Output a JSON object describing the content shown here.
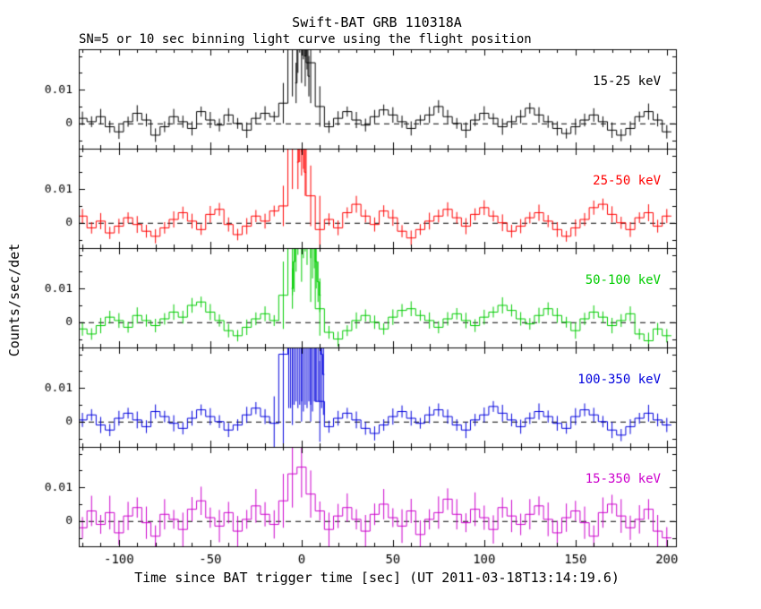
{
  "title": "Swift-BAT GRB 110318A",
  "subtitle": "SN=5 or 10 sec binning light curve using the flight position",
  "xlabel": "Time since BAT trigger time [sec] (UT 2011-03-18T13:14:19.6)",
  "ylabel": "Counts/sec/det",
  "chart_data": {
    "type": "line",
    "style": "step-histogram-with-errorbars",
    "xlim": [
      -122,
      205
    ],
    "ylim": [
      -0.0075,
      0.022
    ],
    "x_major_ticks": [
      -100,
      -50,
      0,
      50,
      100,
      150,
      200
    ],
    "x_minor_step": 10,
    "y_ticks": [
      0,
      0.01
    ],
    "y_minor_ticks": [
      -0.005,
      0,
      0.005,
      0.01,
      0.015,
      0.02
    ],
    "y_scale": 0.001,
    "x_start": -120,
    "x_step": 5,
    "zero_line": "dashed",
    "legend_position": "inside-right",
    "series": [
      {
        "label": "15-25 keV",
        "color": "#000000",
        "y": [
          1.5,
          0.5,
          2.0,
          -1.0,
          -2.5,
          0.5,
          3.0,
          1.0,
          -3.5,
          -1.0,
          2.0,
          0.5,
          -1.5,
          3.5,
          1.0,
          -0.5,
          2.5,
          0.0,
          -2.0,
          1.5,
          3.0,
          2.0,
          6.0,
          22.0,
          30.0,
          18.0,
          5.0,
          -1.0,
          1.5,
          3.5,
          1.0,
          -0.5,
          2.0,
          4.0,
          2.5,
          0.5,
          -1.5,
          1.0,
          2.5,
          5.0,
          2.0,
          0.0,
          -2.0,
          1.0,
          3.0,
          1.5,
          -1.0,
          0.5,
          2.0,
          4.5,
          2.5,
          0.5,
          -1.5,
          -3.0,
          -1.0,
          1.0,
          2.5,
          0.5,
          -2.0,
          -3.5,
          -1.5,
          2.0,
          3.5,
          1.0,
          -2.5
        ],
        "err_pattern": [
          2.0,
          1.6,
          2.3,
          1.8,
          2.1,
          1.5,
          2.4,
          1.9
        ],
        "err_overrides": {
          "22": 6,
          "23": 14,
          "24": 18,
          "25": 12,
          "26": 6
        },
        "fine_step": 1,
        "fine_x": [
          -3,
          -2,
          -1,
          0,
          1,
          2,
          3,
          4
        ],
        "fine_y": [
          12,
          25,
          33,
          35,
          30,
          20,
          26,
          14
        ],
        "fine_err": [
          6,
          10,
          12,
          12,
          11,
          9,
          10,
          6
        ]
      },
      {
        "label": "25-50 keV",
        "color": "#ff0000",
        "y": [
          2.0,
          -1.5,
          0.5,
          -3.0,
          -1.0,
          1.5,
          -0.5,
          -2.5,
          -4.0,
          -1.5,
          1.0,
          3.0,
          0.5,
          -2.0,
          2.5,
          4.0,
          -0.5,
          -3.5,
          -1.0,
          2.0,
          0.5,
          3.5,
          5.0,
          24.0,
          34.0,
          8.0,
          -2.0,
          1.0,
          -1.5,
          3.0,
          5.5,
          2.0,
          -0.5,
          3.5,
          1.5,
          -2.5,
          -4.5,
          -2.0,
          0.5,
          2.0,
          4.0,
          1.5,
          -1.0,
          2.5,
          4.5,
          2.0,
          0.0,
          -2.5,
          -1.0,
          1.5,
          3.0,
          0.5,
          -2.0,
          -4.0,
          -1.5,
          1.0,
          4.5,
          5.5,
          2.5,
          0.0,
          -2.0,
          1.5,
          3.0,
          -1.0,
          2.0
        ],
        "err_pattern": [
          2.1,
          1.7,
          2.4,
          1.8,
          2.2,
          1.6,
          2.5,
          1.9
        ],
        "err_overrides": {
          "22": 6,
          "23": 14,
          "24": 20,
          "25": 9,
          "26": 10
        },
        "fine_step": 1,
        "fine_x": [
          -2,
          -1,
          0,
          1,
          2
        ],
        "fine_y": [
          18,
          30,
          34,
          26,
          15
        ],
        "fine_err": [
          8,
          12,
          13,
          10,
          7
        ]
      },
      {
        "label": "50-100 keV",
        "color": "#00cc00",
        "y": [
          -2.0,
          -3.5,
          -1.0,
          1.5,
          0.5,
          -1.5,
          2.0,
          0.5,
          -1.0,
          1.0,
          3.0,
          1.5,
          5.0,
          6.0,
          3.0,
          0.5,
          -2.5,
          -4.0,
          -1.5,
          1.0,
          2.5,
          0.5,
          8.0,
          28.0,
          34.0,
          26.0,
          4.0,
          -3.0,
          -5.0,
          -2.5,
          0.5,
          2.0,
          0.0,
          -2.0,
          1.5,
          3.5,
          4.0,
          2.0,
          0.5,
          -1.5,
          1.0,
          2.5,
          0.5,
          -1.0,
          1.5,
          3.0,
          5.0,
          3.5,
          1.0,
          -0.5,
          2.0,
          4.0,
          2.0,
          0.0,
          -2.5,
          1.0,
          3.0,
          1.5,
          -1.0,
          0.5,
          2.5,
          -3.5,
          -5.5,
          -2.0,
          -4.0
        ],
        "err_pattern": [
          2.0,
          1.7,
          2.3,
          1.9,
          2.2,
          1.6,
          2.4,
          1.8
        ],
        "err_overrides": {
          "22": 10,
          "23": 20,
          "24": 22,
          "25": 20,
          "26": 8
        },
        "fine_step": 1,
        "fine_x": [
          -5,
          -4,
          -3,
          -2,
          -1,
          0,
          1,
          2,
          3,
          4,
          5,
          6,
          7,
          8,
          9,
          10
        ],
        "fine_y": [
          10,
          18,
          26,
          32,
          35,
          34,
          30,
          33,
          28,
          35,
          30,
          22,
          26,
          18,
          12,
          8
        ],
        "fine_err": [
          6,
          9,
          11,
          12,
          12,
          12,
          11,
          12,
          11,
          12,
          11,
          9,
          10,
          8,
          6,
          5
        ]
      },
      {
        "label": "100-350 keV",
        "color": "#0000dd",
        "y": [
          0.5,
          2.0,
          -1.0,
          -2.5,
          1.0,
          2.5,
          0.5,
          -1.5,
          3.0,
          1.5,
          -0.5,
          -2.0,
          1.0,
          3.5,
          1.5,
          0.0,
          -2.5,
          -1.0,
          2.0,
          4.0,
          1.5,
          -0.5,
          20.0,
          34.0,
          36.0,
          34.0,
          6.0,
          -1.5,
          1.0,
          2.5,
          0.5,
          -2.0,
          -3.5,
          -1.0,
          1.5,
          3.0,
          1.0,
          -0.5,
          2.0,
          3.5,
          1.5,
          -1.0,
          -2.5,
          0.5,
          2.0,
          4.5,
          2.5,
          0.5,
          -1.5,
          1.0,
          3.0,
          1.5,
          -0.5,
          -2.0,
          1.5,
          3.5,
          2.0,
          0.0,
          -2.5,
          -4.0,
          -1.5,
          1.0,
          2.5,
          0.5,
          -1.0
        ],
        "err_pattern": [
          2.1,
          1.7,
          2.4,
          1.8,
          2.2,
          1.6,
          2.5,
          1.9
        ],
        "err_overrides": {
          "21": 8,
          "22": 30,
          "23": 35,
          "24": 36,
          "25": 34,
          "26": 12
        },
        "fine_step": 1,
        "fine_x": [
          -7,
          -6,
          -5,
          -4,
          -3,
          -2,
          -1,
          0,
          1,
          2,
          3,
          4,
          5,
          6,
          7,
          8,
          9,
          10,
          11,
          12
        ],
        "fine_y": [
          22,
          28,
          33,
          35,
          36,
          34,
          35,
          36,
          33,
          35,
          34,
          36,
          35,
          33,
          34,
          32,
          30,
          26,
          20,
          14
        ],
        "fine_err": [
          18,
          24,
          28,
          30,
          30,
          30,
          30,
          30,
          30,
          30,
          30,
          30,
          30,
          30,
          28,
          26,
          24,
          20,
          16,
          12
        ]
      },
      {
        "label": "15-350 keV",
        "color": "#cc00cc",
        "y": [
          -2.0,
          3.0,
          -1.0,
          2.5,
          -3.5,
          1.5,
          4.0,
          -0.5,
          -4.5,
          2.0,
          0.5,
          -2.5,
          3.5,
          6.0,
          1.0,
          -1.5,
          2.5,
          -3.0,
          0.5,
          4.5,
          2.0,
          -1.0,
          6.0,
          14.0,
          16.0,
          8.0,
          3.0,
          -2.5,
          1.5,
          4.0,
          0.5,
          -3.0,
          2.0,
          5.0,
          1.0,
          -1.5,
          3.0,
          -4.0,
          0.5,
          2.5,
          6.5,
          2.0,
          -0.5,
          3.5,
          1.0,
          -2.5,
          4.0,
          1.5,
          -1.0,
          2.0,
          4.5,
          0.5,
          -3.5,
          1.0,
          3.0,
          -0.5,
          -4.5,
          2.5,
          5.0,
          1.5,
          -2.0,
          0.5,
          3.5,
          -3.0,
          -5.0
        ],
        "err_pattern": [
          3.2,
          4.5,
          2.8,
          5.0,
          3.6,
          4.2,
          3.0,
          4.8
        ],
        "err_overrides": {
          "22": 8,
          "23": 10,
          "24": 9,
          "25": 7
        },
        "fine_step": 5,
        "fine_x": [],
        "fine_y": [],
        "fine_err": []
      }
    ]
  }
}
